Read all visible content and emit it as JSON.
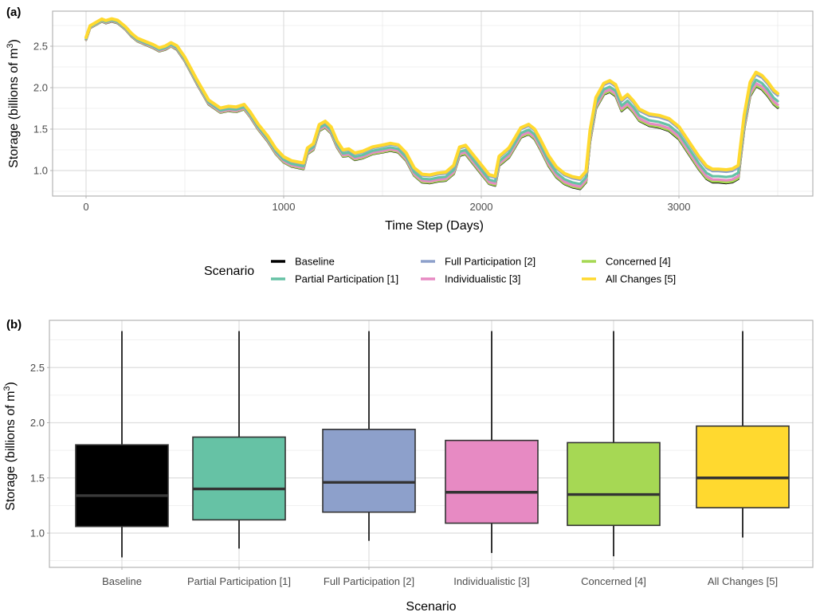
{
  "chart_data": [
    {
      "type": "line",
      "panel_label": "(a)",
      "xlabel": "Time Step (Days)",
      "ylabel": "Storage (billions of m",
      "ylabel_superscript": "3",
      "ylabel_close": ")",
      "xlim": [
        -200,
        3700
      ],
      "ylim": [
        0.68,
        2.92
      ],
      "xticks": [
        0,
        1000,
        2000,
        3000
      ],
      "xtick_labels": [
        "0",
        "1000",
        "2000",
        "3000"
      ],
      "yticks": [
        1.0,
        1.5,
        2.0,
        2.5
      ],
      "ytick_labels": [
        "1.0",
        "1.5",
        "2.0",
        "2.5"
      ],
      "grid": true,
      "base_curve": {
        "x": [
          0,
          20,
          50,
          80,
          100,
          130,
          160,
          200,
          230,
          260,
          300,
          340,
          370,
          400,
          430,
          460,
          500,
          560,
          620,
          680,
          720,
          760,
          800,
          830,
          870,
          920,
          960,
          1000,
          1040,
          1080,
          1100,
          1120,
          1150,
          1180,
          1210,
          1240,
          1270,
          1300,
          1330,
          1360,
          1400,
          1450,
          1500,
          1540,
          1580,
          1620,
          1660,
          1700,
          1740,
          1780,
          1820,
          1860,
          1890,
          1920,
          1960,
          2000,
          2040,
          2070,
          2090,
          2110,
          2140,
          2170,
          2200,
          2240,
          2270,
          2300,
          2340,
          2380,
          2420,
          2460,
          2500,
          2530,
          2550,
          2580,
          2620,
          2650,
          2680,
          2710,
          2740,
          2770,
          2800,
          2850,
          2900,
          2950,
          3000,
          3050,
          3100,
          3140,
          3170,
          3200,
          3240,
          3270,
          3300,
          3330,
          3360,
          3390,
          3420,
          3450,
          3480,
          3500
        ],
        "y": [
          2.58,
          2.72,
          2.76,
          2.8,
          2.78,
          2.8,
          2.78,
          2.7,
          2.62,
          2.56,
          2.52,
          2.48,
          2.44,
          2.46,
          2.5,
          2.46,
          2.32,
          2.05,
          1.8,
          1.7,
          1.72,
          1.71,
          1.74,
          1.65,
          1.5,
          1.35,
          1.2,
          1.1,
          1.05,
          1.03,
          1.02,
          1.2,
          1.25,
          1.48,
          1.52,
          1.45,
          1.28,
          1.17,
          1.18,
          1.13,
          1.15,
          1.2,
          1.22,
          1.24,
          1.22,
          1.12,
          0.94,
          0.86,
          0.85,
          0.87,
          0.88,
          0.96,
          1.18,
          1.2,
          1.08,
          0.96,
          0.84,
          0.82,
          1.06,
          1.1,
          1.16,
          1.28,
          1.4,
          1.44,
          1.38,
          1.25,
          1.06,
          0.92,
          0.84,
          0.8,
          0.78,
          0.86,
          1.35,
          1.75,
          1.92,
          1.95,
          1.9,
          1.72,
          1.78,
          1.7,
          1.6,
          1.54,
          1.52,
          1.48,
          1.38,
          1.2,
          1.02,
          0.9,
          0.86,
          0.86,
          0.85,
          0.86,
          0.9,
          1.5,
          1.9,
          2.02,
          1.98,
          1.9,
          1.8,
          1.76
        ]
      },
      "series": [
        {
          "name": "Baseline",
          "color": "#000000",
          "offset_scale": 0.0
        },
        {
          "name": "Partial Participation [1]",
          "color": "#66c2a5",
          "offset_scale": 0.45
        },
        {
          "name": "Full Participation [2]",
          "color": "#8da0cb",
          "offset_scale": 0.85
        },
        {
          "name": "Individualistic [3]",
          "color": "#e78ac3",
          "offset_scale": 0.2
        },
        {
          "name": "Concerned [4]",
          "color": "#a6d854",
          "offset_scale": 0.05
        },
        {
          "name": "All Changes [5]",
          "color": "#ffd92f",
          "offset_scale": 1.0
        }
      ],
      "series_max_offset": 0.17,
      "legend": {
        "title": "Scenario",
        "position": "bottom",
        "entries": [
          "Baseline",
          "Partial Participation [1]",
          "Full Participation [2]",
          "Individualistic [3]",
          "Concerned [4]",
          "All Changes [5]"
        ]
      }
    },
    {
      "type": "box",
      "panel_label": "(b)",
      "xlabel": "Scenario",
      "ylabel": "Storage (billions of m",
      "ylabel_superscript": "3",
      "ylabel_close": ")",
      "ylim": [
        0.68,
        2.92
      ],
      "yticks": [
        1.0,
        1.5,
        2.0,
        2.5
      ],
      "ytick_labels": [
        "1.0",
        "1.5",
        "2.0",
        "2.5"
      ],
      "grid": true,
      "categories": [
        "Baseline",
        "Partial Participation [1]",
        "Full Participation [2]",
        "Individualistic [3]",
        "Concerned [4]",
        "All Changes [5]"
      ],
      "colors": [
        "#000000",
        "#66c2a5",
        "#8da0cb",
        "#e78ac3",
        "#a6d854",
        "#ffd92f"
      ],
      "min": [
        0.78,
        0.86,
        0.93,
        0.82,
        0.79,
        0.96
      ],
      "q1": [
        1.06,
        1.12,
        1.19,
        1.09,
        1.07,
        1.23
      ],
      "median": [
        1.34,
        1.4,
        1.46,
        1.37,
        1.35,
        1.5
      ],
      "q3": [
        1.8,
        1.87,
        1.94,
        1.84,
        1.82,
        1.97
      ],
      "max": [
        2.83,
        2.83,
        2.83,
        2.83,
        2.83,
        2.83
      ]
    }
  ]
}
